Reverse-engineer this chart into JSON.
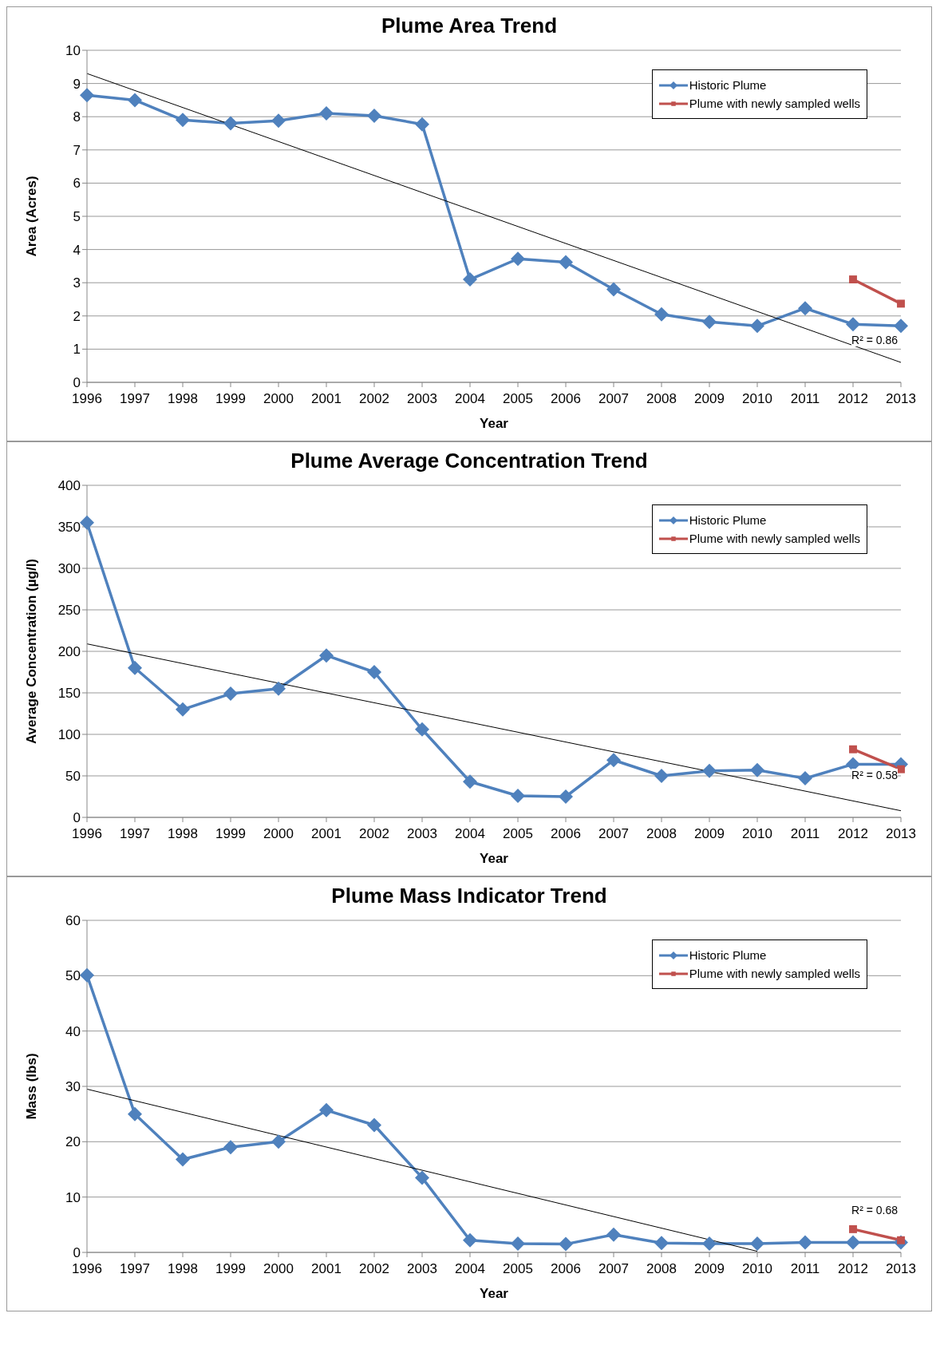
{
  "chart_data": [
    {
      "type": "line",
      "title": "Plume Area Trend",
      "xlabel": "Year",
      "ylabel": "Area (Acres)",
      "categories": [
        "1996",
        "1997",
        "1998",
        "1999",
        "2000",
        "2001",
        "2002",
        "2003",
        "2004",
        "2005",
        "2006",
        "2007",
        "2008",
        "2009",
        "2010",
        "2011",
        "2012",
        "2013"
      ],
      "series": [
        {
          "name": "Historic Plume",
          "color": "#4f81bd",
          "marker": "diamond",
          "values": [
            8.65,
            8.5,
            7.9,
            7.8,
            7.88,
            8.1,
            8.03,
            7.77,
            3.1,
            3.72,
            3.62,
            2.8,
            2.05,
            1.82,
            1.7,
            2.23,
            1.75,
            1.7
          ]
        },
        {
          "name": "Plume with newly sampled wells",
          "color": "#c0504d",
          "marker": "square",
          "values": [
            null,
            null,
            null,
            null,
            null,
            null,
            null,
            null,
            null,
            null,
            null,
            null,
            null,
            null,
            null,
            null,
            3.1,
            2.37
          ]
        },
        {
          "type": "line",
          "color": "#000000",
          "marker": "none",
          "values": [
            9.3,
            null,
            null,
            null,
            null,
            null,
            null,
            null,
            null,
            null,
            null,
            null,
            null,
            null,
            null,
            null,
            null,
            0.6
          ]
        }
      ],
      "ylim": [
        0,
        10
      ],
      "yticks": [
        0,
        1,
        2,
        3,
        4,
        5,
        6,
        7,
        8,
        9,
        10
      ],
      "grid": "y",
      "legend": "top right",
      "annotations": [
        "R² = 0.86"
      ]
    },
    {
      "type": "line",
      "title": "Plume Average Concentration Trend",
      "xlabel": "Year",
      "ylabel": "Average Concentration (µg/l)",
      "categories": [
        "1996",
        "1997",
        "1998",
        "1999",
        "2000",
        "2001",
        "2002",
        "2003",
        "2004",
        "2005",
        "2006",
        "2007",
        "2008",
        "2009",
        "2010",
        "2011",
        "2012",
        "2013"
      ],
      "series": [
        {
          "name": "Historic Plume",
          "color": "#4f81bd",
          "marker": "diamond",
          "values": [
            355,
            180,
            130,
            149,
            155,
            195,
            175,
            106,
            43,
            26,
            25,
            69,
            50,
            56,
            57,
            47,
            64,
            64
          ]
        },
        {
          "name": "Plume with newly sampled wells",
          "color": "#c0504d",
          "marker": "square",
          "values": [
            null,
            null,
            null,
            null,
            null,
            null,
            null,
            null,
            null,
            null,
            null,
            null,
            null,
            null,
            null,
            null,
            82,
            58
          ]
        },
        {
          "type": "line",
          "color": "#000000",
          "marker": "none",
          "values": [
            209,
            null,
            null,
            null,
            null,
            null,
            null,
            null,
            null,
            null,
            null,
            null,
            null,
            null,
            null,
            null,
            null,
            8
          ]
        }
      ],
      "ylim": [
        0,
        400
      ],
      "yticks": [
        0,
        50,
        100,
        150,
        200,
        250,
        300,
        350,
        400
      ],
      "grid": "y",
      "legend": "top right",
      "annotations": [
        "R² = 0.58"
      ]
    },
    {
      "type": "line",
      "title": "Plume Mass Indicator Trend",
      "xlabel": "Year",
      "ylabel": "Mass (lbs)",
      "categories": [
        "1996",
        "1997",
        "1998",
        "1999",
        "2000",
        "2001",
        "2002",
        "2003",
        "2004",
        "2005",
        "2006",
        "2007",
        "2008",
        "2009",
        "2010",
        "2011",
        "2012",
        "2013"
      ],
      "series": [
        {
          "name": "Historic Plume",
          "color": "#4f81bd",
          "marker": "diamond",
          "values": [
            50.1,
            25,
            16.8,
            19,
            20,
            25.7,
            23,
            13.5,
            2.2,
            1.6,
            1.5,
            3.2,
            1.7,
            1.6,
            1.6,
            1.8,
            1.8,
            1.8
          ]
        },
        {
          "name": "Plume with newly sampled wells",
          "color": "#c0504d",
          "marker": "square",
          "values": [
            null,
            null,
            null,
            null,
            null,
            null,
            null,
            null,
            null,
            null,
            null,
            null,
            null,
            null,
            null,
            null,
            4.2,
            2.2
          ]
        },
        {
          "type": "line",
          "color": "#000000",
          "marker": "none",
          "values": [
            29.5,
            null,
            null,
            null,
            null,
            null,
            null,
            null,
            null,
            null,
            null,
            null,
            null,
            null,
            0.2,
            null,
            null,
            null
          ]
        }
      ],
      "ylim": [
        0,
        60
      ],
      "yticks": [
        0,
        10,
        20,
        30,
        40,
        50,
        60
      ],
      "grid": "y",
      "legend": "top right",
      "annotations": [
        "R² = 0.68"
      ]
    }
  ]
}
